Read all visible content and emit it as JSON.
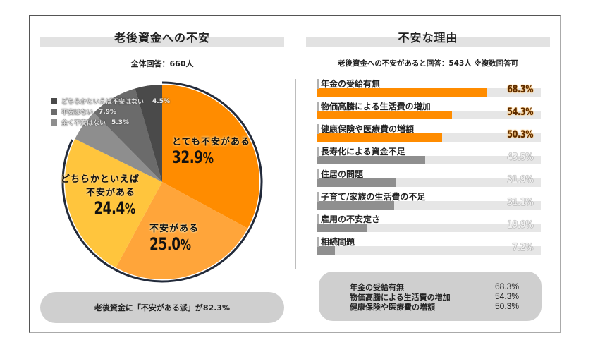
{
  "left_panel": {
    "title": "老後資金への不安",
    "subtitle": "全体回答：660人",
    "summary": "老後資金に「不安がある派」が82.3%",
    "legend": [
      {
        "label": "どちらかといえば不安はない",
        "value": "4.5%",
        "color": "#4a4a4a"
      },
      {
        "label": "不安はない",
        "value": "7.9%",
        "color": "#6b6b6b"
      },
      {
        "label": "全く不安はない",
        "value": "5.3%",
        "color": "#8e8e8e"
      }
    ],
    "pie_labels": [
      {
        "category": "とても不安がある",
        "pct": "32.9",
        "unit": "%"
      },
      {
        "category": "不安がある",
        "pct": "25.0",
        "unit": "%"
      },
      {
        "category_line1": "どちらかといえば",
        "category_line2": "不安がある",
        "pct": "24.4",
        "unit": "%"
      }
    ]
  },
  "right_panel": {
    "title": "不安な理由",
    "subtitle": "老後資金への不安があると回答：543人 ※複数回答可",
    "bars": [
      {
        "label": "年金の受給有無",
        "value": 68.3,
        "display": "68.3%",
        "highlight": true
      },
      {
        "label": "物価高騰による生活費の増加",
        "value": 54.3,
        "display": "54.3%",
        "highlight": true
      },
      {
        "label": "健康保険や医療費の増額",
        "value": 50.3,
        "display": "50.3%",
        "highlight": true
      },
      {
        "label": "長寿化による資金不足",
        "value": 43.5,
        "display": "43.5%",
        "highlight": false
      },
      {
        "label": "住居の問題",
        "value": 31.9,
        "display": "31.9%",
        "highlight": false
      },
      {
        "label": "子育て/家族の生活費の不足",
        "value": 31.1,
        "display": "31.1%",
        "highlight": false
      },
      {
        "label": "雇用の不安定さ",
        "value": 19.9,
        "display": "19.9%",
        "highlight": false
      },
      {
        "label": "相続問題",
        "value": 7.2,
        "display": "7.2%",
        "highlight": false
      }
    ],
    "top3": [
      {
        "label": "年金の受給有無",
        "value": "68.3%"
      },
      {
        "label": "物価高騰による生活費の増加",
        "value": "54.3%"
      },
      {
        "label": "健康保険や医療費の増額",
        "value": "50.3%"
      }
    ]
  },
  "colors": {
    "orange_dark": "#ff8c00",
    "orange_mid": "#ffa53a",
    "yellow": "#ffc53d",
    "gray_dark": "#4a4a4a",
    "gray_mid": "#6b6b6b",
    "gray_light": "#8e8e8e",
    "bar_gray": "#8f8f8f",
    "track": "#e6e6e6",
    "pill": "#cfcfcf"
  },
  "chart_data": [
    {
      "type": "pie",
      "title": "老後資金への不安",
      "subtitle": "全体回答：660人",
      "categories": [
        "とても不安がある",
        "不安がある",
        "どちらかといえば不安がある",
        "全く不安はない",
        "不安はない",
        "どちらかといえば不安はない"
      ],
      "values": [
        32.9,
        25.0,
        24.4,
        5.3,
        7.9,
        4.5
      ],
      "colors": [
        "#ff8c00",
        "#ffa53a",
        "#ffc53d",
        "#8e8e8e",
        "#6b6b6b",
        "#4a4a4a"
      ],
      "start_angle": "12 o'clock, clockwise",
      "legend_position": "top-left",
      "annotation": "老後資金に「不安がある派」が82.3%"
    },
    {
      "type": "bar",
      "orientation": "horizontal",
      "title": "不安な理由",
      "subtitle": "老後資金への不安があると回答：543人 ※複数回答可",
      "categories": [
        "年金の受給有無",
        "物価高騰による生活費の増加",
        "健康保険や医療費の増額",
        "長寿化による資金不足",
        "住居の問題",
        "子育て/家族の生活費の不足",
        "雇用の不安定さ",
        "相続問題"
      ],
      "values": [
        68.3,
        54.3,
        50.3,
        43.5,
        31.9,
        31.1,
        19.9,
        7.2
      ],
      "unit": "%",
      "xlim": [
        0,
        100
      ],
      "highlight_top_n": 3,
      "grid": false
    }
  ]
}
